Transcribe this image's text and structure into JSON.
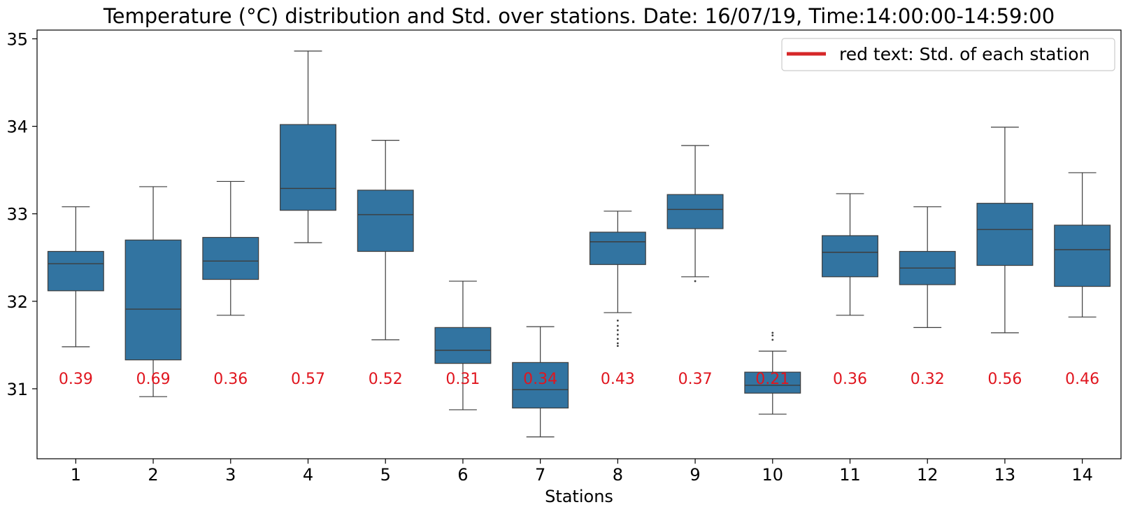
{
  "chart_data": {
    "type": "box",
    "title": "Temperature (°C) distribution and Std. over stations. Date: 16/07/19, Time:14:00:00-14:59:00",
    "xlabel": "Stations",
    "ylabel": "",
    "ylim": [
      30.2,
      35.1
    ],
    "yticks": [
      31,
      32,
      33,
      34,
      35
    ],
    "categories": [
      "1",
      "2",
      "3",
      "4",
      "5",
      "6",
      "7",
      "8",
      "9",
      "10",
      "11",
      "12",
      "13",
      "14"
    ],
    "boxes": [
      {
        "station": "1",
        "whisker_low": 31.48,
        "q1": 32.12,
        "median": 32.43,
        "q3": 32.57,
        "whisker_high": 33.08,
        "outliers": []
      },
      {
        "station": "2",
        "whisker_low": 30.91,
        "q1": 31.33,
        "median": 31.91,
        "q3": 32.7,
        "whisker_high": 33.31,
        "outliers": []
      },
      {
        "station": "3",
        "whisker_low": 31.84,
        "q1": 32.25,
        "median": 32.46,
        "q3": 32.73,
        "whisker_high": 33.37,
        "outliers": []
      },
      {
        "station": "4",
        "whisker_low": 32.67,
        "q1": 33.04,
        "median": 33.29,
        "q3": 34.02,
        "whisker_high": 34.86,
        "outliers": []
      },
      {
        "station": "5",
        "whisker_low": 31.56,
        "q1": 32.57,
        "median": 32.99,
        "q3": 33.27,
        "whisker_high": 33.84,
        "outliers": []
      },
      {
        "station": "6",
        "whisker_low": 30.76,
        "q1": 31.29,
        "median": 31.44,
        "q3": 31.7,
        "whisker_high": 32.23,
        "outliers": []
      },
      {
        "station": "7",
        "whisker_low": 30.45,
        "q1": 30.78,
        "median": 30.99,
        "q3": 31.3,
        "whisker_high": 31.71,
        "outliers": []
      },
      {
        "station": "8",
        "whisker_low": 31.87,
        "q1": 32.42,
        "median": 32.68,
        "q3": 32.79,
        "whisker_high": 33.03,
        "outliers": [
          31.78,
          31.72,
          31.67,
          31.62,
          31.57,
          31.52,
          31.49
        ]
      },
      {
        "station": "9",
        "whisker_low": 32.28,
        "q1": 32.83,
        "median": 33.05,
        "q3": 33.22,
        "whisker_high": 33.78,
        "outliers": [
          32.23
        ]
      },
      {
        "station": "10",
        "whisker_low": 30.71,
        "q1": 30.95,
        "median": 31.04,
        "q3": 31.19,
        "whisker_high": 31.43,
        "outliers": [
          31.64,
          31.61,
          31.56
        ]
      },
      {
        "station": "11",
        "whisker_low": 31.84,
        "q1": 32.28,
        "median": 32.56,
        "q3": 32.75,
        "whisker_high": 33.23,
        "outliers": []
      },
      {
        "station": "12",
        "whisker_low": 31.7,
        "q1": 32.19,
        "median": 32.38,
        "q3": 32.57,
        "whisker_high": 33.08,
        "outliers": []
      },
      {
        "station": "13",
        "whisker_low": 31.64,
        "q1": 32.41,
        "median": 32.82,
        "q3": 33.12,
        "whisker_high": 33.99,
        "outliers": []
      },
      {
        "station": "14",
        "whisker_low": 31.82,
        "q1": 32.17,
        "median": 32.59,
        "q3": 32.87,
        "whisker_high": 33.47,
        "outliers": []
      }
    ],
    "std_labels": [
      "0.39",
      "0.69",
      "0.36",
      "0.57",
      "0.52",
      "0.31",
      "0.34",
      "0.43",
      "0.37",
      "0.21",
      "0.36",
      "0.32",
      "0.56",
      "0.46"
    ],
    "std_label_y": 31.11,
    "legend": {
      "placement": "top-right",
      "entries": [
        {
          "label": "red text: Std. of each station",
          "color": "#d62728"
        }
      ]
    },
    "grid": false,
    "colors": {
      "box_fill": "#3274a1",
      "box_edge": "#3d3d3d",
      "std_text": "#e0161f",
      "legend_line": "#d62728"
    }
  }
}
